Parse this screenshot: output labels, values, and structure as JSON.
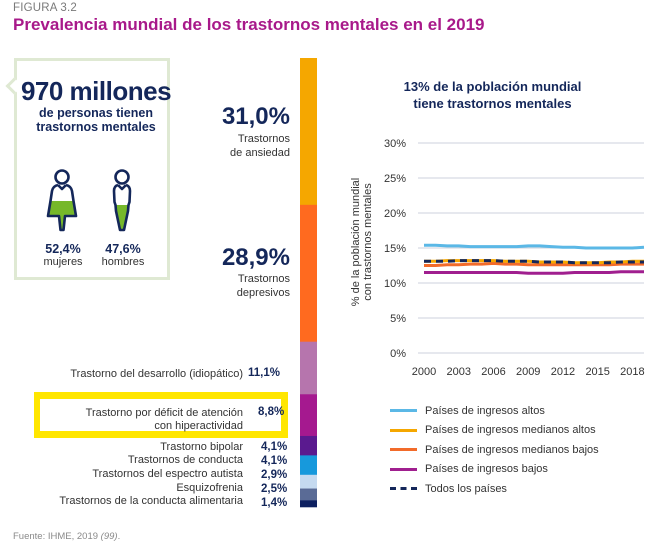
{
  "figure_label": "FIGURA 3.2",
  "title": "Prevalencia mundial de los trastornos mentales en el 2019",
  "summary": {
    "headline": "970 millones",
    "caption_line1": "de personas tienen",
    "caption_line2": "trastornos mentales",
    "women": {
      "value": "52,4%",
      "label": "mujeres",
      "icon": "woman-icon"
    },
    "men": {
      "value": "47,6%",
      "label": "hombres",
      "icon": "man-icon"
    }
  },
  "colors": {
    "title": "#a8198a",
    "navy": "#14275a",
    "box_border": "#dfe9d3",
    "icon_fill": "#76b82a",
    "highlight": "#ffe600"
  },
  "source": {
    "text": "Fuente: IHME, 2019 ",
    "ref": "(99)",
    "end": "."
  },
  "chart_data": [
    {
      "type": "bar",
      "subtype": "stacked-100",
      "title": "",
      "categories": [
        "Trastornos de ansiedad",
        "Trastornos depresivos",
        "Trastorno del desarrollo (idiopático)",
        "Trastorno por déficit de atención con hiperactividad",
        "Trastorno bipolar",
        "Trastornos de conducta",
        "Trastornos del espectro autista",
        "Esquizofrenia",
        "Trastornos de la conducta alimentaria"
      ],
      "values": [
        31.0,
        28.9,
        11.1,
        8.8,
        4.1,
        4.1,
        2.9,
        2.5,
        1.4
      ],
      "value_labels": [
        "31,0%",
        "28,9%",
        "11,1%",
        "8,8%",
        "4,1%",
        "4,1%",
        "2,9%",
        "2,5%",
        "1,4%"
      ],
      "label_lines": [
        [
          "Trastornos",
          "de ansiedad"
        ],
        [
          "Trastornos",
          "depresivos"
        ],
        [
          "Trastorno del desarrollo (idiopático)"
        ],
        [
          "Trastorno por déficit de atención",
          "con hiperactividad"
        ],
        [
          "Trastorno bipolar"
        ],
        [
          "Trastornos de conducta"
        ],
        [
          "Trastornos del espectro autista"
        ],
        [
          "Esquizofrenia"
        ],
        [
          "Trastornos de la conducta alimentaria"
        ]
      ],
      "colors": [
        "#f5a700",
        "#ff6a1f",
        "#b675ad",
        "#a5198f",
        "#5a1a8f",
        "#1799dc",
        "#c5daf0",
        "#5a6b96",
        "#0d2060"
      ],
      "highlighted_category": "Trastorno por déficit de atención con hiperactividad"
    },
    {
      "type": "line",
      "title": "13% de la población mundial tiene trastornos mentales",
      "title_lines": [
        "13% de la población mundial",
        "tiene trastornos mentales"
      ],
      "xlabel": "",
      "ylabel": "% de la población mundial con trastornos mentales",
      "ylabel_lines": [
        "% de la población mundial",
        "con trastornos mentales"
      ],
      "x": [
        2000,
        2001,
        2002,
        2003,
        2004,
        2005,
        2006,
        2007,
        2008,
        2009,
        2010,
        2011,
        2012,
        2013,
        2014,
        2015,
        2016,
        2017,
        2018,
        2019
      ],
      "xticks": [
        2000,
        2003,
        2006,
        2009,
        2012,
        2015,
        2018
      ],
      "yticks": [
        0,
        5,
        10,
        15,
        20,
        25,
        30
      ],
      "ytick_labels": [
        "0%",
        "5%",
        "10%",
        "15%",
        "20%",
        "25%",
        "30%"
      ],
      "ylim": [
        0,
        30
      ],
      "grid": true,
      "legend_position": "bottom",
      "series": [
        {
          "name": "Países de ingresos altos",
          "color": "#5bb8e6",
          "style": "solid",
          "values": [
            15.4,
            15.4,
            15.3,
            15.3,
            15.2,
            15.2,
            15.2,
            15.2,
            15.2,
            15.3,
            15.3,
            15.2,
            15.1,
            15.1,
            15.0,
            15.0,
            15.0,
            15.0,
            15.0,
            15.1
          ]
        },
        {
          "name": "Países de ingresos medianos altos",
          "color": "#f5a700",
          "style": "solid",
          "values": [
            13.1,
            13.1,
            13.2,
            13.2,
            13.2,
            13.2,
            13.2,
            13.1,
            13.1,
            13.1,
            13.0,
            13.0,
            13.0,
            12.9,
            12.9,
            12.9,
            13.0,
            13.0,
            13.1,
            13.1
          ]
        },
        {
          "name": "Países de ingresos medianos bajos",
          "color": "#f26b2a",
          "style": "solid",
          "values": [
            12.5,
            12.5,
            12.6,
            12.6,
            12.7,
            12.7,
            12.8,
            12.7,
            12.7,
            12.6,
            12.6,
            12.6,
            12.6,
            12.6,
            12.6,
            12.6,
            12.6,
            12.7,
            12.7,
            12.7
          ]
        },
        {
          "name": "Países de ingresos bajos",
          "color": "#a01f8f",
          "style": "solid",
          "values": [
            11.5,
            11.5,
            11.5,
            11.5,
            11.5,
            11.5,
            11.5,
            11.5,
            11.5,
            11.4,
            11.4,
            11.4,
            11.4,
            11.5,
            11.5,
            11.5,
            11.5,
            11.6,
            11.6,
            11.6
          ]
        },
        {
          "name": "Todos los países",
          "color": "#14275a",
          "style": "dashed",
          "values": [
            13.1,
            13.1,
            13.1,
            13.2,
            13.2,
            13.2,
            13.2,
            13.1,
            13.1,
            13.1,
            13.0,
            13.0,
            13.0,
            12.9,
            12.9,
            12.9,
            12.9,
            13.0,
            13.0,
            13.0
          ]
        }
      ]
    }
  ]
}
